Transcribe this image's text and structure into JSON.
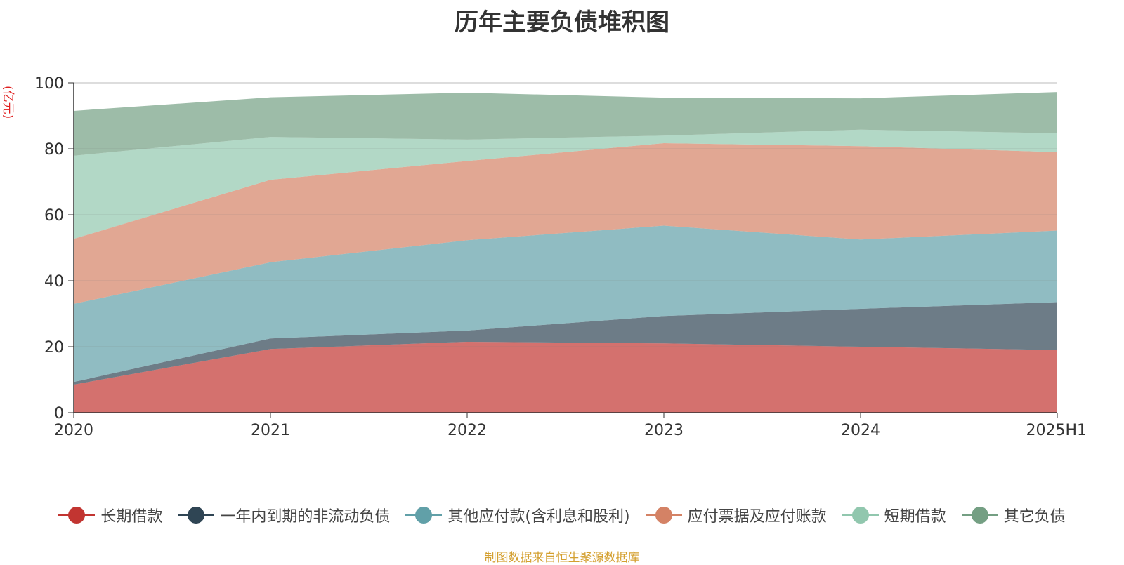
{
  "chart_data": {
    "type": "area",
    "stacked": true,
    "title": "历年主要负债堆积图",
    "unit_label": "(亿元)",
    "categories": [
      "2020",
      "2021",
      "2022",
      "2023",
      "2024",
      "2025H1"
    ],
    "ylim": [
      0,
      100
    ],
    "yticks": [
      0,
      20,
      40,
      60,
      80,
      100
    ],
    "grid": true,
    "legend_position": "bottom",
    "series": [
      {
        "name": "长期借款",
        "color": "#c23531",
        "values": [
          8.5,
          19.3,
          21.5,
          21.0,
          20.0,
          19.0
        ]
      },
      {
        "name": "一年内到期的非流动负债",
        "color": "#2f4554",
        "values": [
          0.8,
          3.2,
          3.4,
          8.3,
          11.5,
          14.5
        ]
      },
      {
        "name": "其他应付款(含利息和股利)",
        "color": "#61a0a8",
        "values": [
          23.7,
          23.1,
          27.4,
          27.4,
          21.0,
          21.7
        ]
      },
      {
        "name": "应付票据及应付账款",
        "color": "#d48265",
        "values": [
          19.7,
          25.0,
          24.0,
          25.0,
          28.3,
          23.8
        ]
      },
      {
        "name": "短期借款",
        "color": "#91c7ae",
        "values": [
          25.2,
          13.0,
          6.5,
          2.3,
          5.0,
          5.7
        ]
      },
      {
        "name": "其它负债",
        "color": "#749f83",
        "values": [
          13.6,
          12.0,
          14.2,
          11.5,
          9.5,
          12.5
        ]
      }
    ],
    "source_note": "制图数据来自恒生聚源数据库"
  }
}
